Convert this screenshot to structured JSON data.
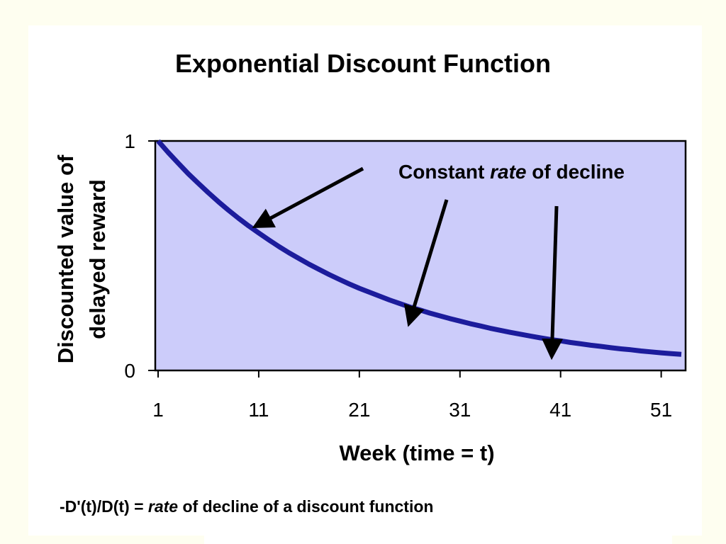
{
  "colors": {
    "plot_background": "#ccccfa",
    "curve": "#1c1c9c",
    "arrow": "#000000",
    "page_background": "#fefef0"
  },
  "annotation": {
    "prefix": "Constant ",
    "italic": "rate",
    "suffix": " of decline"
  },
  "formula": {
    "prefix": "-D'(t)/D(t) = ",
    "italic": "rate",
    "suffix": " of decline of a discount function"
  },
  "chart_data": {
    "type": "line",
    "title": "Exponential Discount Function",
    "xlabel": "Week (time = t)",
    "ylabel": [
      "Discounted value of",
      "delayed reward"
    ],
    "xlim": [
      1,
      53
    ],
    "ylim": [
      0,
      1
    ],
    "x_ticks": [
      1,
      11,
      21,
      31,
      41,
      51
    ],
    "y_ticks": [
      0,
      1
    ],
    "grid": false,
    "legend": "none",
    "series": [
      {
        "decay_per_week": 0.95,
        "x": [
          1,
          2,
          3,
          4,
          5,
          6,
          7,
          8,
          9,
          10,
          11,
          12,
          13,
          14,
          15,
          16,
          17,
          18,
          19,
          20,
          21,
          22,
          23,
          24,
          25,
          26,
          27,
          28,
          29,
          30,
          31,
          32,
          33,
          34,
          35,
          36,
          37,
          38,
          39,
          40,
          41,
          42,
          43,
          44,
          45,
          46,
          47,
          48,
          49,
          50,
          51,
          52,
          53
        ],
        "values": [
          1.0,
          0.95,
          0.903,
          0.857,
          0.815,
          0.774,
          0.735,
          0.698,
          0.663,
          0.63,
          0.599,
          0.569,
          0.54,
          0.513,
          0.488,
          0.463,
          0.44,
          0.418,
          0.397,
          0.377,
          0.358,
          0.341,
          0.324,
          0.307,
          0.292,
          0.277,
          0.264,
          0.25,
          0.238,
          0.226,
          0.215,
          0.204,
          0.194,
          0.184,
          0.175,
          0.166,
          0.158,
          0.15,
          0.142,
          0.135,
          0.129,
          0.122,
          0.116,
          0.11,
          0.105,
          0.099,
          0.094,
          0.09,
          0.085,
          0.081,
          0.077,
          0.073,
          0.07
        ]
      }
    ],
    "arrows_target_x": [
      10,
      26,
      40
    ]
  }
}
